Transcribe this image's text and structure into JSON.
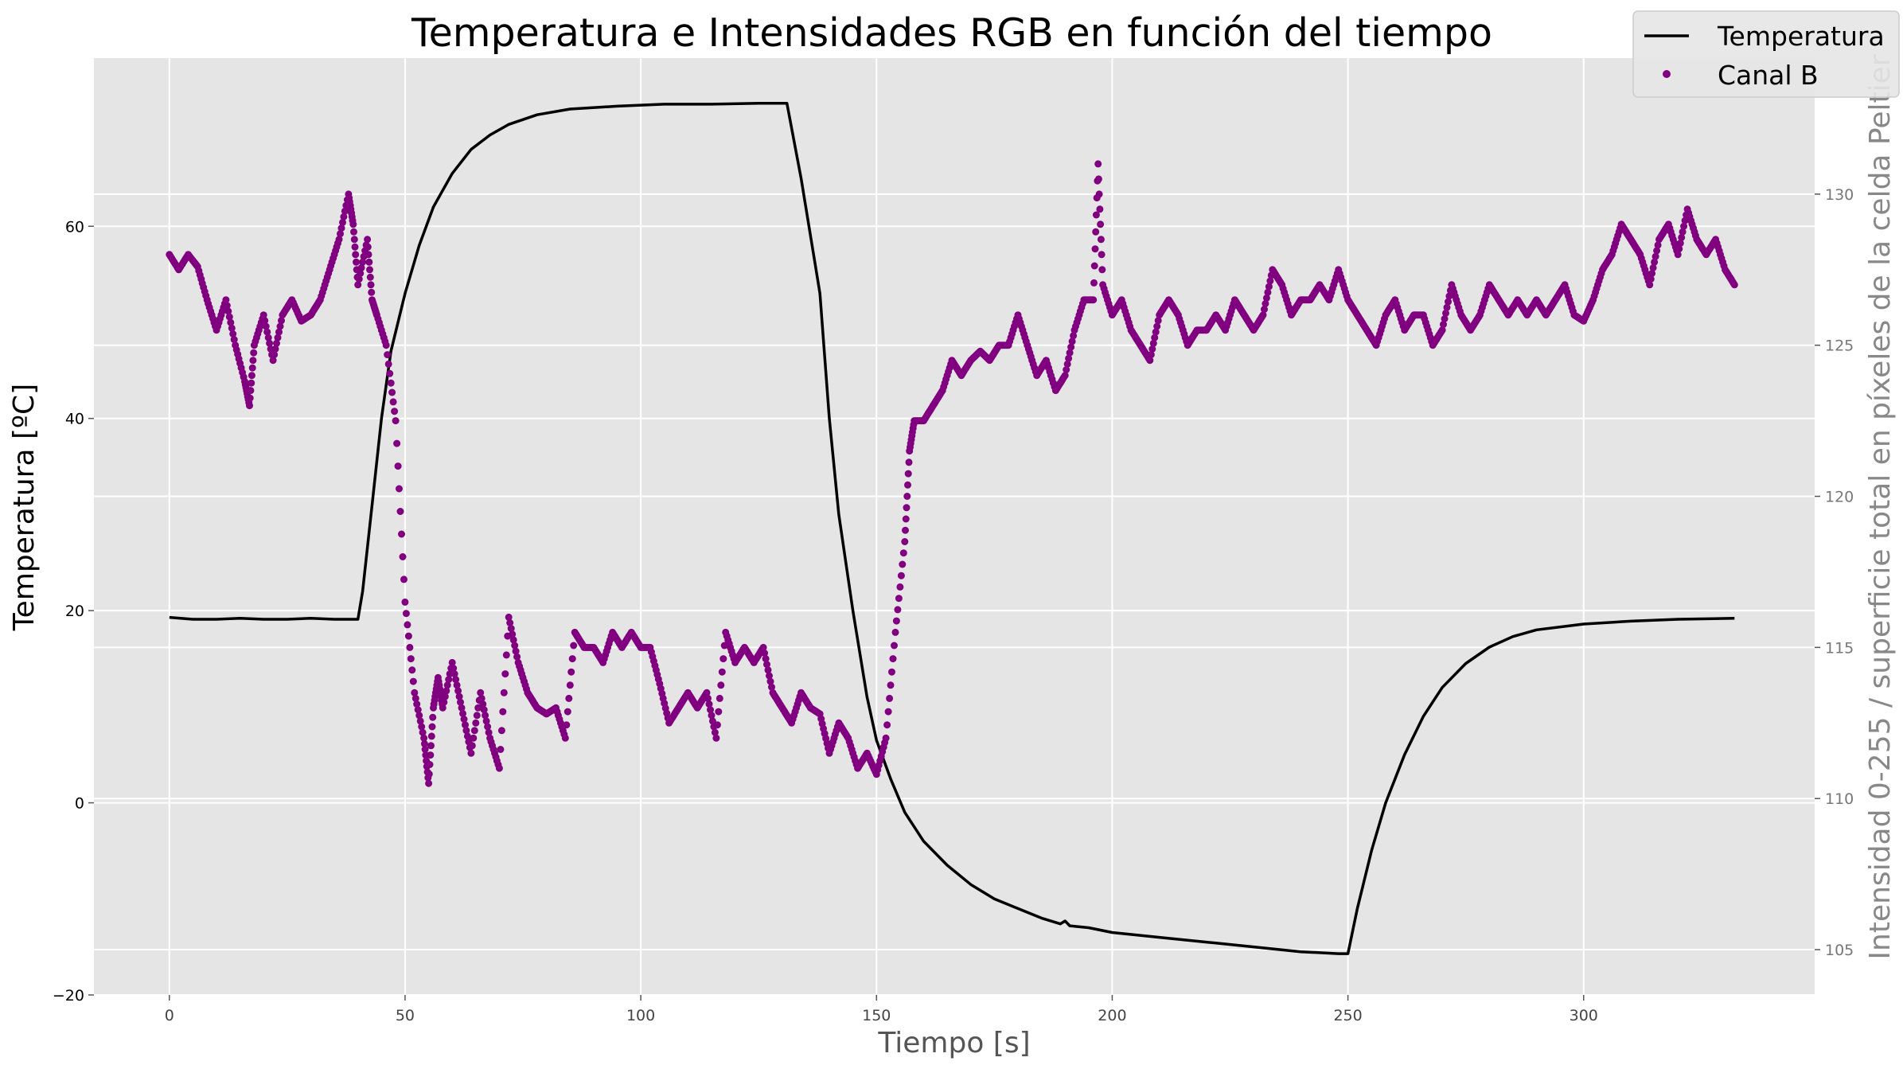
{
  "chart_data": {
    "type": "line",
    "title": "Temperatura e Intensidades RGB en función del tiempo",
    "xlabel": "Tiempo [s]",
    "ylabel_left": "Temperatura [ºC]",
    "ylabel_right": "Intensidad 0-255 / superficie total en píxeles de la celda Peltier",
    "xlim": [
      -16,
      349
    ],
    "ylim_left": [
      -20,
      77.5
    ],
    "ylim_right": [
      103.5,
      134.5
    ],
    "x_ticks": [
      0,
      50,
      100,
      150,
      200,
      250,
      300
    ],
    "y_left_ticks": [
      -20,
      0,
      20,
      40,
      60
    ],
    "y_right_ticks": [
      105,
      110,
      115,
      120,
      125,
      130
    ],
    "grid": true,
    "legend_position": "top-right",
    "background": "#e5e5e5",
    "series": [
      {
        "name": "Temperatura",
        "axis": "left",
        "style": "line",
        "color": "#000000",
        "points": [
          [
            0,
            19.3
          ],
          [
            5,
            19.1
          ],
          [
            10,
            19.1
          ],
          [
            15,
            19.2
          ],
          [
            20,
            19.1
          ],
          [
            25,
            19.1
          ],
          [
            30,
            19.2
          ],
          [
            35,
            19.1
          ],
          [
            38,
            19.1
          ],
          [
            40,
            19.1
          ],
          [
            41,
            22
          ],
          [
            43,
            31
          ],
          [
            45,
            40
          ],
          [
            47,
            47
          ],
          [
            50,
            53
          ],
          [
            53,
            58
          ],
          [
            56,
            62
          ],
          [
            60,
            65.5
          ],
          [
            64,
            68
          ],
          [
            68,
            69.5
          ],
          [
            72,
            70.6
          ],
          [
            78,
            71.6
          ],
          [
            85,
            72.2
          ],
          [
            95,
            72.5
          ],
          [
            105,
            72.7
          ],
          [
            115,
            72.7
          ],
          [
            125,
            72.8
          ],
          [
            131,
            72.8
          ],
          [
            134,
            65
          ],
          [
            137,
            56
          ],
          [
            138,
            53
          ],
          [
            140,
            40
          ],
          [
            142,
            30
          ],
          [
            145,
            20
          ],
          [
            148,
            11
          ],
          [
            150,
            6.5
          ],
          [
            153,
            2.5
          ],
          [
            156,
            -1
          ],
          [
            160,
            -4
          ],
          [
            165,
            -6.5
          ],
          [
            170,
            -8.5
          ],
          [
            175,
            -10
          ],
          [
            180,
            -11
          ],
          [
            185,
            -12
          ],
          [
            189,
            -12.6
          ],
          [
            190,
            -12.3
          ],
          [
            191,
            -12.8
          ],
          [
            195,
            -13
          ],
          [
            200,
            -13.5
          ],
          [
            210,
            -14
          ],
          [
            220,
            -14.5
          ],
          [
            230,
            -15
          ],
          [
            240,
            -15.5
          ],
          [
            248,
            -15.7
          ],
          [
            250,
            -15.7
          ],
          [
            252,
            -11
          ],
          [
            255,
            -5
          ],
          [
            258,
            0
          ],
          [
            262,
            5
          ],
          [
            266,
            9
          ],
          [
            270,
            12
          ],
          [
            275,
            14.5
          ],
          [
            280,
            16.2
          ],
          [
            285,
            17.3
          ],
          [
            290,
            18
          ],
          [
            300,
            18.6
          ],
          [
            310,
            18.9
          ],
          [
            320,
            19.1
          ],
          [
            332,
            19.2
          ]
        ]
      },
      {
        "name": "Canal B",
        "axis": "right",
        "style": "markers",
        "color": "#800080",
        "points": [
          [
            0,
            128.0
          ],
          [
            2,
            127.5
          ],
          [
            4,
            128.0
          ],
          [
            6,
            127.6
          ],
          [
            8,
            126.5
          ],
          [
            10,
            125.5
          ],
          [
            12,
            126.5
          ],
          [
            14,
            125.0
          ],
          [
            16,
            123.8
          ],
          [
            17,
            123.0
          ],
          [
            18,
            125.0
          ],
          [
            20,
            126.0
          ],
          [
            22,
            124.5
          ],
          [
            24,
            126.0
          ],
          [
            26,
            126.5
          ],
          [
            28,
            125.8
          ],
          [
            30,
            126.0
          ],
          [
            32,
            126.5
          ],
          [
            34,
            127.5
          ],
          [
            36,
            128.5
          ],
          [
            38,
            130.0
          ],
          [
            39,
            129.0
          ],
          [
            40,
            127.0
          ],
          [
            42,
            128.5
          ],
          [
            43,
            126.5
          ],
          [
            44,
            126.0
          ],
          [
            46,
            125.0
          ],
          [
            48,
            122.5
          ],
          [
            50,
            116.5
          ],
          [
            52,
            113.5
          ],
          [
            54,
            112.0
          ],
          [
            55,
            110.5
          ],
          [
            56,
            113.0
          ],
          [
            57,
            114.0
          ],
          [
            58,
            113.0
          ],
          [
            60,
            114.5
          ],
          [
            62,
            113.0
          ],
          [
            64,
            111.5
          ],
          [
            66,
            113.5
          ],
          [
            68,
            112.0
          ],
          [
            70,
            111.0
          ],
          [
            72,
            116.0
          ],
          [
            74,
            114.5
          ],
          [
            76,
            113.5
          ],
          [
            78,
            113.0
          ],
          [
            80,
            112.8
          ],
          [
            82,
            113.0
          ],
          [
            84,
            112.0
          ],
          [
            86,
            115.5
          ],
          [
            88,
            115.0
          ],
          [
            90,
            115.0
          ],
          [
            92,
            114.5
          ],
          [
            94,
            115.5
          ],
          [
            96,
            115.0
          ],
          [
            98,
            115.5
          ],
          [
            100,
            115.0
          ],
          [
            102,
            115.0
          ],
          [
            104,
            113.8
          ],
          [
            106,
            112.5
          ],
          [
            108,
            113.0
          ],
          [
            110,
            113.5
          ],
          [
            112,
            113.0
          ],
          [
            114,
            113.5
          ],
          [
            116,
            112.0
          ],
          [
            118,
            115.5
          ],
          [
            120,
            114.5
          ],
          [
            122,
            115.0
          ],
          [
            124,
            114.5
          ],
          [
            126,
            115.0
          ],
          [
            128,
            113.5
          ],
          [
            130,
            113.0
          ],
          [
            132,
            112.5
          ],
          [
            134,
            113.5
          ],
          [
            136,
            113.0
          ],
          [
            138,
            112.8
          ],
          [
            140,
            111.5
          ],
          [
            142,
            112.5
          ],
          [
            144,
            112.0
          ],
          [
            146,
            111.0
          ],
          [
            148,
            111.5
          ],
          [
            150,
            110.8
          ],
          [
            152,
            112.0
          ],
          [
            154,
            115.5
          ],
          [
            156,
            118.5
          ],
          [
            157,
            121.5
          ],
          [
            158,
            122.5
          ],
          [
            160,
            122.5
          ],
          [
            162,
            123.0
          ],
          [
            164,
            123.5
          ],
          [
            166,
            124.5
          ],
          [
            168,
            124.0
          ],
          [
            170,
            124.5
          ],
          [
            172,
            124.8
          ],
          [
            174,
            124.5
          ],
          [
            176,
            125.0
          ],
          [
            178,
            125.0
          ],
          [
            180,
            126.0
          ],
          [
            182,
            125.0
          ],
          [
            184,
            124.0
          ],
          [
            186,
            124.5
          ],
          [
            188,
            123.5
          ],
          [
            190,
            124.0
          ],
          [
            192,
            125.5
          ],
          [
            194,
            126.5
          ],
          [
            196,
            126.5
          ],
          [
            197,
            131.0
          ],
          [
            198,
            127.0
          ],
          [
            200,
            126.0
          ],
          [
            202,
            126.5
          ],
          [
            204,
            125.5
          ],
          [
            206,
            125.0
          ],
          [
            208,
            124.5
          ],
          [
            210,
            126.0
          ],
          [
            212,
            126.5
          ],
          [
            214,
            126.0
          ],
          [
            216,
            125.0
          ],
          [
            218,
            125.5
          ],
          [
            220,
            125.5
          ],
          [
            222,
            126.0
          ],
          [
            224,
            125.5
          ],
          [
            226,
            126.5
          ],
          [
            228,
            126.0
          ],
          [
            230,
            125.5
          ],
          [
            232,
            126.0
          ],
          [
            234,
            127.5
          ],
          [
            236,
            127.0
          ],
          [
            238,
            126.0
          ],
          [
            240,
            126.5
          ],
          [
            242,
            126.5
          ],
          [
            244,
            127.0
          ],
          [
            246,
            126.5
          ],
          [
            248,
            127.5
          ],
          [
            250,
            126.5
          ],
          [
            252,
            126.0
          ],
          [
            254,
            125.5
          ],
          [
            256,
            125.0
          ],
          [
            258,
            126.0
          ],
          [
            260,
            126.5
          ],
          [
            262,
            125.5
          ],
          [
            264,
            126.0
          ],
          [
            266,
            126.0
          ],
          [
            268,
            125.0
          ],
          [
            270,
            125.5
          ],
          [
            272,
            127.0
          ],
          [
            274,
            126.0
          ],
          [
            276,
            125.5
          ],
          [
            278,
            126.0
          ],
          [
            280,
            127.0
          ],
          [
            282,
            126.5
          ],
          [
            284,
            126.0
          ],
          [
            286,
            126.5
          ],
          [
            288,
            126.0
          ],
          [
            290,
            126.5
          ],
          [
            292,
            126.0
          ],
          [
            294,
            126.5
          ],
          [
            296,
            127.0
          ],
          [
            298,
            126.0
          ],
          [
            300,
            125.8
          ],
          [
            302,
            126.5
          ],
          [
            304,
            127.5
          ],
          [
            306,
            128.0
          ],
          [
            308,
            129.0
          ],
          [
            310,
            128.5
          ],
          [
            312,
            128.0
          ],
          [
            314,
            127.0
          ],
          [
            316,
            128.5
          ],
          [
            318,
            129.0
          ],
          [
            320,
            128.0
          ],
          [
            322,
            129.5
          ],
          [
            324,
            128.5
          ],
          [
            326,
            128.0
          ],
          [
            328,
            128.5
          ],
          [
            330,
            127.5
          ],
          [
            332,
            127.0
          ]
        ]
      }
    ]
  }
}
